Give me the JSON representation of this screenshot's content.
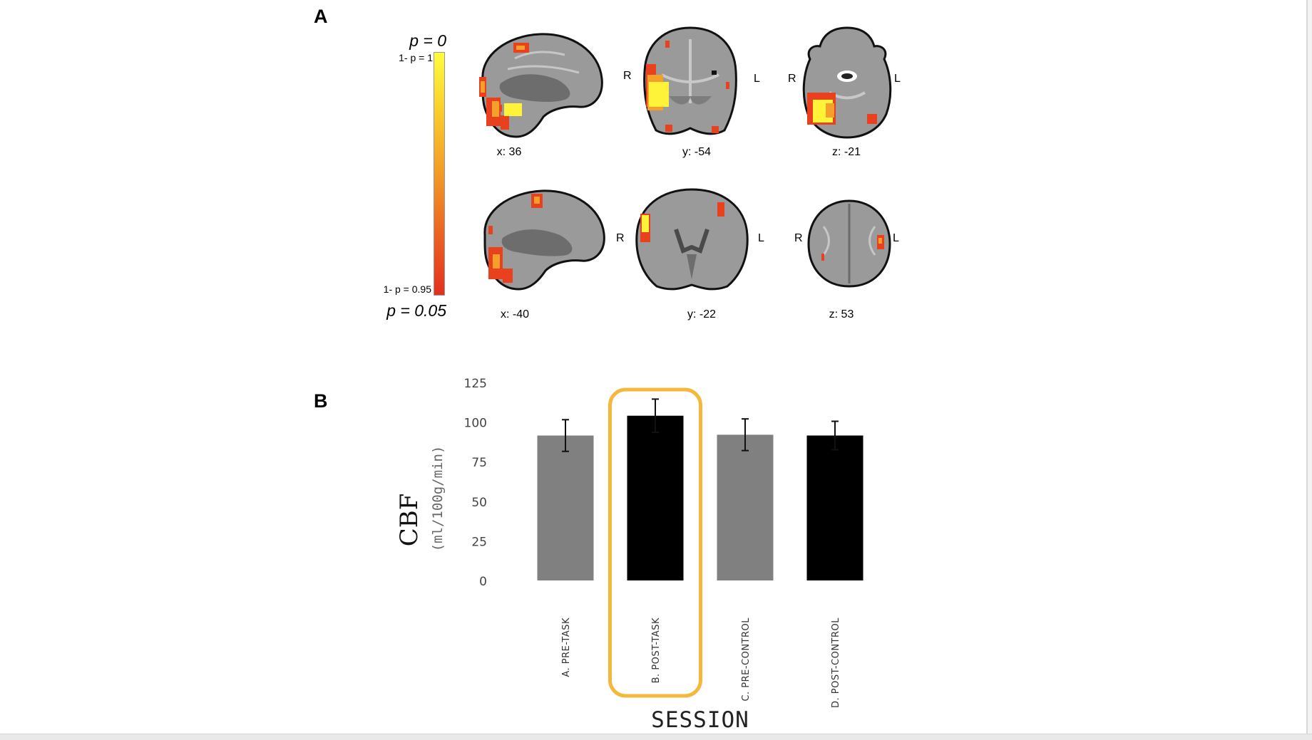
{
  "panel_a": {
    "letter": "A",
    "colorbar": {
      "top_label": "p = 0",
      "bottom_label": "p = 0.05",
      "upper_tick": "1- p = 1",
      "lower_tick": "1- p = 0.95"
    },
    "slices": [
      {
        "coord": "x: 36",
        "view": "sagittal"
      },
      {
        "coord": "y: -54",
        "view": "coronal",
        "left": "R",
        "right": "L"
      },
      {
        "coord": "z: -21",
        "view": "axial",
        "left": "R",
        "right": "L"
      },
      {
        "coord": "x: -40",
        "view": "sagittal"
      },
      {
        "coord": "y: -22",
        "view": "coronal",
        "left": "R",
        "right": "L"
      },
      {
        "coord": "z: 53",
        "view": "axial",
        "left": "R",
        "right": "L"
      }
    ]
  },
  "panel_b": {
    "letter": "B",
    "ylabel": "CBF",
    "ylabel_unit": "(ml/100g/min)",
    "xlabel": "SESSION"
  },
  "chart_data": {
    "type": "bar",
    "categories": [
      "A. PRE-TASK",
      "B. POST-TASK",
      "C. PRE-CONTROL",
      "D. POST-CONTROL"
    ],
    "values": [
      91.5,
      104,
      92,
      91.5
    ],
    "errors": [
      10,
      10.5,
      10,
      9
    ],
    "colors": [
      "#808080",
      "#000000",
      "#808080",
      "#000000"
    ],
    "highlight_category": "B. POST-TASK",
    "highlight_color": "#f4b93c",
    "ylim": [
      0,
      125
    ],
    "yticks": [
      0,
      25,
      50,
      75,
      100,
      125
    ],
    "grid": false
  }
}
